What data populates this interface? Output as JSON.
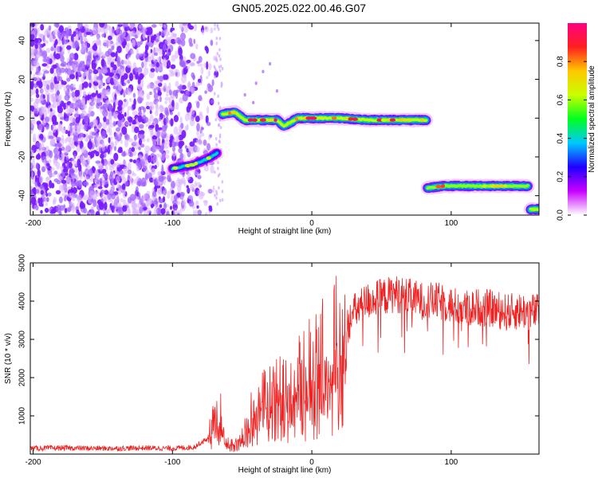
{
  "title": "GN05.2025.022.00.46.G07",
  "chart_data": [
    {
      "type": "heatmap",
      "xlabel": "Height of straight line (km)",
      "ylabel": "Frequency (Hz)",
      "xlim": [
        -202,
        163
      ],
      "ylim": [
        -50,
        49
      ],
      "xticks": [
        -200,
        -100,
        0,
        100
      ],
      "yticks": [
        -40,
        -20,
        0,
        20,
        40
      ],
      "colorbar": {
        "label": "Normalized spectral amplitude",
        "range": [
          0.0,
          1.0
        ],
        "ticks": [
          0.0,
          0.2,
          0.4,
          0.6,
          0.8
        ],
        "tick_labels": [
          "0.0",
          "0.2",
          "0.4",
          "0.6",
          "0.8"
        ],
        "colors": [
          "#ffffff",
          "#c800ff",
          "#2000ff",
          "#00c8ff",
          "#00ff20",
          "#c8ff00",
          "#ffc800",
          "#ff2020",
          "#ff0080"
        ]
      },
      "features": [
        {
          "kind": "noise",
          "x_range": [
            -202,
            -68
          ],
          "freq_range": [
            -50,
            49
          ],
          "amplitude": "low-moderate",
          "color": "#7a1cff"
        },
        {
          "kind": "trace",
          "points": [
            [
              -100,
              -26
            ],
            [
              -85,
              -24
            ],
            [
              -75,
              -21
            ],
            [
              -68,
              -18
            ]
          ],
          "amplitude_peak": 0.6
        },
        {
          "kind": "trace",
          "points": [
            [
              -64,
              2
            ],
            [
              -55,
              3
            ],
            [
              -48,
              -1
            ],
            [
              -35,
              -1
            ],
            [
              -25,
              -1
            ],
            [
              -20,
              -4
            ],
            [
              -10,
              0
            ],
            [
              0,
              0
            ],
            [
              20,
              0
            ],
            [
              40,
              -1
            ],
            [
              60,
              -1
            ],
            [
              82,
              -1
            ]
          ],
          "amplitude_peak": 0.95
        },
        {
          "kind": "trace",
          "points": [
            [
              83,
              -36
            ],
            [
              95,
              -35
            ],
            [
              110,
              -35
            ],
            [
              130,
              -35
            ],
            [
              155,
              -35
            ]
          ],
          "amplitude_peak": 0.9
        },
        {
          "kind": "trace",
          "points": [
            [
              157,
              -47
            ],
            [
              163,
              -47
            ]
          ],
          "amplitude_peak": 0.95
        }
      ]
    },
    {
      "type": "line",
      "xlabel": "Height of straight line (km)",
      "ylabel": "SNR (10 * v/v)",
      "xlim": [
        -202,
        163
      ],
      "ylim": [
        0,
        5000
      ],
      "xticks": [
        -200,
        -100,
        0,
        100
      ],
      "yticks": [
        1000,
        2000,
        3000,
        4000,
        5000
      ],
      "color": "#ee2222",
      "series": [
        {
          "x": [
            -202,
            -180,
            -160,
            -140,
            -120,
            -100,
            -85,
            -75,
            -70,
            -66,
            -62,
            -58,
            -50,
            -45,
            -40,
            -30,
            -20,
            -10,
            0,
            10,
            20,
            25,
            30,
            40,
            50,
            60,
            70,
            80,
            90,
            100,
            110,
            120,
            130,
            140,
            150,
            163
          ],
          "values": [
            150,
            160,
            150,
            150,
            160,
            150,
            180,
            400,
            900,
            1300,
            300,
            250,
            500,
            900,
            1300,
            1500,
            1700,
            1900,
            2300,
            2700,
            3000,
            3300,
            3700,
            4000,
            4100,
            4200,
            4100,
            4000,
            4000,
            3900,
            3800,
            3850,
            3800,
            3700,
            3750,
            3700
          ]
        }
      ]
    }
  ]
}
